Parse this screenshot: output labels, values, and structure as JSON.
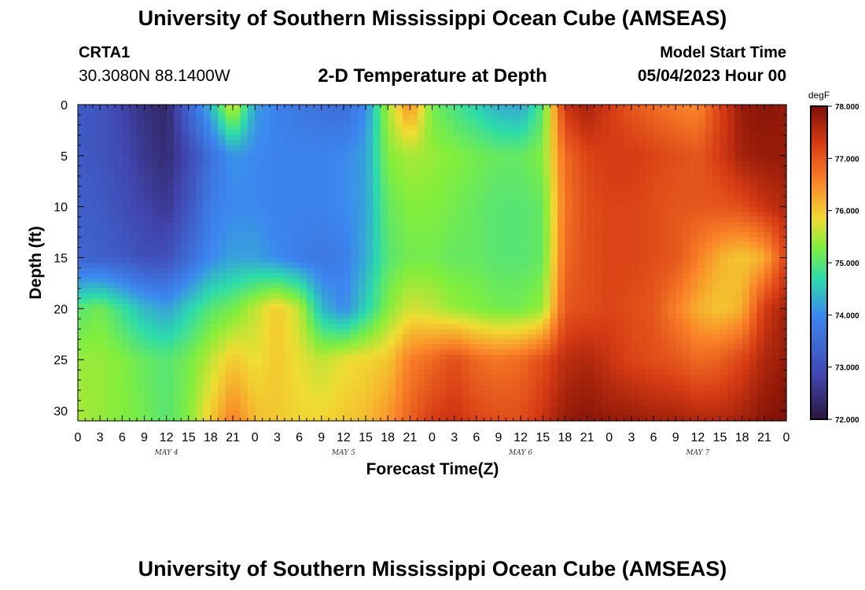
{
  "header": {
    "main_title": "University of Southern Mississippi Ocean Cube (AMSEAS)",
    "station": "CRTA1",
    "coordinates": "30.3080N  88.1400W",
    "plot_title": "2-D Temperature at Depth",
    "model_start_label": "Model Start Time",
    "model_start_value": "05/04/2023 Hour 00",
    "footer_title": "University of Southern Mississippi Ocean Cube (AMSEAS)"
  },
  "chart_data": {
    "type": "heatmap",
    "title": "2-D Temperature at Depth",
    "xlabel": "Forecast Time(Z)",
    "ylabel": "Depth (ft)",
    "x_tick_labels": [
      "0",
      "3",
      "6",
      "9",
      "12",
      "15",
      "18",
      "21",
      "0",
      "3",
      "6",
      "9",
      "12",
      "15",
      "18",
      "21",
      "0",
      "3",
      "6",
      "9",
      "12",
      "15",
      "18",
      "21",
      "0",
      "3",
      "6",
      "9",
      "12",
      "15",
      "18",
      "21",
      "0"
    ],
    "day_labels": [
      "MAY 4",
      "MAY 5",
      "MAY 6",
      "MAY 7"
    ],
    "xlim_hours": [
      0,
      96
    ],
    "y_ticks": [
      0,
      5,
      10,
      15,
      20,
      25,
      30
    ],
    "ylim": [
      0,
      31
    ],
    "y_inverted": true,
    "colorbar": {
      "unit": "degF",
      "ticks": [
        "78.000",
        "77.000",
        "76.000",
        "75.000",
        "74.000",
        "73.000",
        "72.000"
      ],
      "range": [
        72,
        78
      ]
    },
    "hours": [
      0,
      3,
      6,
      9,
      12,
      15,
      18,
      21,
      24,
      27,
      30,
      33,
      36,
      39,
      42,
      45,
      48,
      51,
      54,
      57,
      60,
      63,
      66,
      69,
      72,
      75,
      78,
      81,
      84,
      87,
      90,
      93,
      96
    ],
    "depths": [
      0,
      5,
      10,
      15,
      20,
      25,
      31
    ],
    "temperature": [
      [
        73.2,
        73.1,
        72.8,
        72.5,
        72.3,
        73.4,
        74.4,
        75.8,
        74.2,
        73.9,
        73.7,
        73.6,
        73.5,
        74.0,
        75.5,
        76.5,
        75.2,
        74.9,
        74.6,
        74.3,
        74.2,
        75.0,
        77.4,
        77.7,
        77.3,
        77.0,
        76.8,
        76.6,
        76.5,
        77.2,
        77.8,
        77.9,
        77.8
      ],
      [
        73.2,
        73.1,
        72.9,
        72.6,
        72.4,
        72.9,
        73.6,
        74.1,
        74.0,
        73.9,
        73.9,
        73.9,
        74.0,
        74.2,
        75.3,
        75.5,
        75.4,
        75.3,
        75.2,
        75.1,
        75.1,
        75.3,
        76.8,
        77.2,
        77.3,
        77.3,
        77.2,
        77.1,
        77.0,
        77.3,
        77.7,
        77.8,
        77.8
      ],
      [
        73.3,
        73.2,
        73.0,
        72.8,
        72.6,
        73.1,
        73.8,
        74.0,
        74.0,
        73.9,
        73.9,
        73.9,
        74.0,
        74.2,
        75.1,
        75.3,
        75.3,
        75.2,
        75.1,
        75.0,
        75.0,
        75.1,
        76.7,
        77.1,
        77.2,
        77.2,
        77.1,
        77.0,
        77.0,
        77.0,
        77.1,
        77.4,
        77.6
      ],
      [
        73.4,
        73.3,
        73.2,
        73.0,
        73.0,
        73.5,
        74.0,
        74.2,
        74.2,
        74.0,
        73.8,
        73.7,
        73.8,
        74.3,
        75.0,
        75.2,
        75.2,
        75.1,
        75.1,
        75.0,
        75.0,
        75.1,
        76.8,
        77.1,
        77.2,
        77.2,
        77.1,
        77.0,
        76.6,
        76.2,
        76.0,
        76.2,
        77.2
      ],
      [
        75.0,
        75.2,
        74.8,
        74.4,
        74.2,
        74.6,
        75.0,
        75.2,
        75.6,
        76.0,
        75.6,
        74.4,
        74.0,
        74.6,
        75.3,
        75.7,
        75.6,
        75.4,
        75.3,
        75.2,
        75.2,
        75.4,
        77.0,
        77.1,
        77.2,
        77.1,
        77.0,
        76.6,
        76.2,
        76.0,
        76.2,
        77.3,
        77.7
      ],
      [
        75.4,
        75.4,
        75.3,
        75.1,
        75.0,
        75.2,
        75.6,
        76.0,
        75.8,
        76.0,
        75.8,
        75.6,
        75.8,
        75.9,
        76.0,
        76.6,
        76.8,
        77.1,
        76.8,
        76.7,
        76.8,
        77.1,
        77.5,
        77.6,
        77.4,
        77.2,
        77.1,
        77.0,
        76.8,
        76.9,
        77.2,
        77.6,
        77.8
      ],
      [
        75.5,
        75.4,
        75.3,
        75.2,
        75.0,
        75.3,
        76.0,
        76.6,
        76.1,
        76.0,
        75.9,
        75.9,
        76.0,
        76.1,
        76.4,
        76.9,
        77.3,
        77.4,
        77.2,
        77.1,
        77.1,
        77.4,
        77.8,
        77.9,
        77.8,
        77.8,
        77.7,
        77.7,
        77.6,
        77.6,
        77.7,
        77.9,
        78.0
      ]
    ]
  }
}
